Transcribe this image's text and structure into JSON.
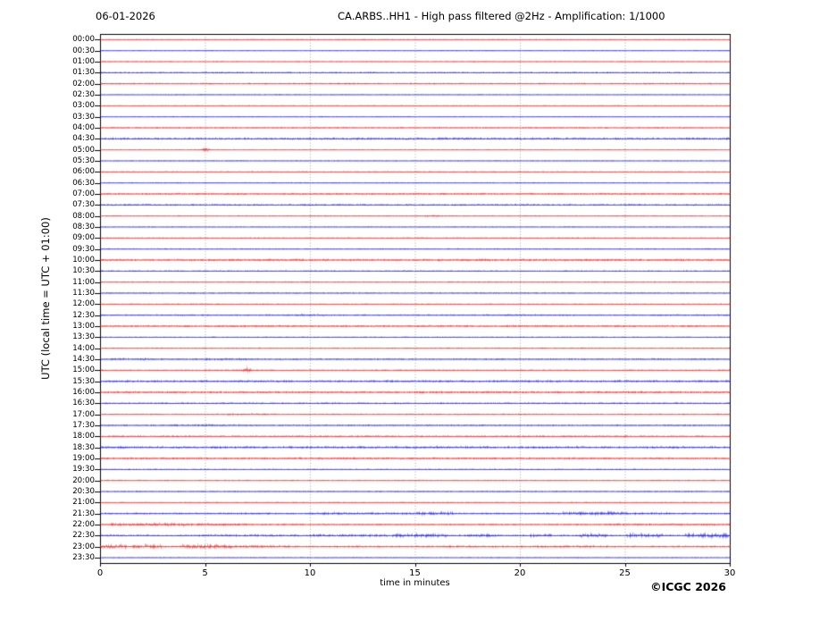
{
  "header": {
    "date": "06-01-2026",
    "title": "CA.ARBS..HH1 - High pass filtered @2Hz - Amplification: 1/1000"
  },
  "axes": {
    "y_label": "UTC (local time = UTC + 01:00)",
    "x_label": "time in minutes",
    "x_ticks": [
      0,
      5,
      10,
      15,
      20,
      25,
      30
    ],
    "x_gridlines": [
      5,
      10,
      15,
      20,
      25
    ]
  },
  "footer": {
    "copyright": "©ICGC 2026"
  },
  "chart_data": {
    "type": "line",
    "subtype": "helicorder-seismogram",
    "title": "CA.ARBS..HH1 - High pass filtered @2Hz - Amplification: 1/1000",
    "date": "06-01-2026",
    "xlabel": "time in minutes",
    "ylabel": "UTC (local time = UTC + 01:00)",
    "x_range": [
      0,
      30
    ],
    "minutes_per_row": 30,
    "grid": "vertical-dotted",
    "colors": {
      "even_row": "#ff0000",
      "odd_row": "#0000ff",
      "grid": "#999999",
      "frame": "#000000"
    },
    "rows": [
      {
        "time": "00:00",
        "color": "red",
        "base": 0.6,
        "segments": [],
        "events": []
      },
      {
        "time": "00:30",
        "color": "blue",
        "base": 0.6,
        "segments": [],
        "events": []
      },
      {
        "time": "01:00",
        "color": "red",
        "base": 0.6,
        "segments": [],
        "events": []
      },
      {
        "time": "01:30",
        "color": "blue",
        "base": 1.0,
        "segments": [],
        "events": []
      },
      {
        "time": "02:00",
        "color": "red",
        "base": 1.0,
        "segments": [],
        "events": []
      },
      {
        "time": "02:30",
        "color": "blue",
        "base": 0.6,
        "segments": [],
        "events": []
      },
      {
        "time": "03:00",
        "color": "red",
        "base": 0.6,
        "segments": [],
        "events": []
      },
      {
        "time": "03:30",
        "color": "blue",
        "base": 0.6,
        "segments": [],
        "events": []
      },
      {
        "time": "04:00",
        "color": "red",
        "base": 0.9,
        "segments": [],
        "events": []
      },
      {
        "time": "04:30",
        "color": "blue",
        "base": 1.5,
        "segments": [],
        "events": []
      },
      {
        "time": "05:00",
        "color": "red",
        "base": 0.6,
        "segments": [
          {
            "from": 4.6,
            "to": 5.4,
            "amp": 1.0
          }
        ],
        "events": [
          {
            "at": 5.0,
            "amp": 3.5,
            "width": 0.35
          }
        ]
      },
      {
        "time": "05:30",
        "color": "blue",
        "base": 0.6,
        "segments": [],
        "events": []
      },
      {
        "time": "06:00",
        "color": "red",
        "base": 0.7,
        "segments": [],
        "events": []
      },
      {
        "time": "06:30",
        "color": "blue",
        "base": 0.7,
        "segments": [],
        "events": []
      },
      {
        "time": "07:00",
        "color": "red",
        "base": 1.2,
        "segments": [],
        "events": []
      },
      {
        "time": "07:30",
        "color": "blue",
        "base": 1.2,
        "segments": [],
        "events": []
      },
      {
        "time": "08:00",
        "color": "red",
        "base": 0.7,
        "segments": [
          {
            "from": 15.3,
            "to": 16.2,
            "amp": 1.1
          }
        ],
        "events": []
      },
      {
        "time": "08:30",
        "color": "blue",
        "base": 0.6,
        "segments": [],
        "events": []
      },
      {
        "time": "09:00",
        "color": "red",
        "base": 0.7,
        "segments": [],
        "events": []
      },
      {
        "time": "09:30",
        "color": "blue",
        "base": 0.8,
        "segments": [],
        "events": []
      },
      {
        "time": "10:00",
        "color": "red",
        "base": 1.5,
        "segments": [],
        "events": []
      },
      {
        "time": "10:30",
        "color": "blue",
        "base": 0.9,
        "segments": [],
        "events": []
      },
      {
        "time": "11:00",
        "color": "red",
        "base": 0.8,
        "segments": [],
        "events": []
      },
      {
        "time": "11:30",
        "color": "blue",
        "base": 0.8,
        "segments": [],
        "events": []
      },
      {
        "time": "12:00",
        "color": "red",
        "base": 0.7,
        "segments": [],
        "events": []
      },
      {
        "time": "12:30",
        "color": "blue",
        "base": 1.0,
        "segments": [
          {
            "from": 9.2,
            "to": 10.9,
            "amp": 1.4
          },
          {
            "from": 19.0,
            "to": 21.0,
            "amp": 1.2
          }
        ],
        "events": []
      },
      {
        "time": "13:00",
        "color": "red",
        "base": 1.3,
        "segments": [],
        "events": []
      },
      {
        "time": "13:30",
        "color": "blue",
        "base": 0.7,
        "segments": [],
        "events": []
      },
      {
        "time": "14:00",
        "color": "red",
        "base": 0.8,
        "segments": [],
        "events": []
      },
      {
        "time": "14:30",
        "color": "blue",
        "base": 1.0,
        "segments": [
          {
            "from": 0.5,
            "to": 2.2,
            "amp": 1.6
          },
          {
            "from": 5.0,
            "to": 7.0,
            "amp": 1.5
          }
        ],
        "events": []
      },
      {
        "time": "15:00",
        "color": "red",
        "base": 0.8,
        "segments": [
          {
            "from": 6.5,
            "to": 7.5,
            "amp": 1.2
          }
        ],
        "events": [
          {
            "at": 7.0,
            "amp": 4.5,
            "width": 0.35
          }
        ]
      },
      {
        "time": "15:30",
        "color": "blue",
        "base": 1.5,
        "segments": [],
        "events": []
      },
      {
        "time": "16:00",
        "color": "red",
        "base": 1.4,
        "segments": [
          {
            "from": 14.8,
            "to": 17.0,
            "amp": 1.7
          }
        ],
        "events": []
      },
      {
        "time": "16:30",
        "color": "blue",
        "base": 1.1,
        "segments": [],
        "events": []
      },
      {
        "time": "17:00",
        "color": "red",
        "base": 0.9,
        "segments": [
          {
            "from": 6.0,
            "to": 8.0,
            "amp": 1.3
          }
        ],
        "events": []
      },
      {
        "time": "17:30",
        "color": "blue",
        "base": 1.0,
        "segments": [
          {
            "from": 3.0,
            "to": 7.0,
            "amp": 1.3
          }
        ],
        "events": []
      },
      {
        "time": "18:00",
        "color": "red",
        "base": 1.1,
        "segments": [],
        "events": []
      },
      {
        "time": "18:30",
        "color": "blue",
        "base": 1.6,
        "segments": [],
        "events": []
      },
      {
        "time": "19:00",
        "color": "red",
        "base": 1.4,
        "segments": [],
        "events": []
      },
      {
        "time": "19:30",
        "color": "blue",
        "base": 0.8,
        "segments": [],
        "events": []
      },
      {
        "time": "20:00",
        "color": "red",
        "base": 0.8,
        "segments": [],
        "events": []
      },
      {
        "time": "20:30",
        "color": "blue",
        "base": 0.8,
        "segments": [],
        "events": []
      },
      {
        "time": "21:00",
        "color": "red",
        "base": 0.7,
        "segments": [],
        "events": []
      },
      {
        "time": "21:30",
        "color": "blue",
        "base": 1.2,
        "segments": [
          {
            "from": 10,
            "to": 15,
            "amp": 1.7
          },
          {
            "from": 15,
            "to": 16.8,
            "amp": 2.5
          },
          {
            "from": 21.8,
            "to": 24.6,
            "amp": 2.7
          },
          {
            "from": 24.6,
            "to": 27,
            "amp": 1.9
          }
        ],
        "events": []
      },
      {
        "time": "22:00",
        "color": "red",
        "base": 1.1,
        "segments": [
          {
            "from": 0.5,
            "to": 4.0,
            "amp": 2.3
          },
          {
            "from": 4.0,
            "to": 7.0,
            "amp": 1.8
          },
          {
            "from": 24,
            "to": 30,
            "amp": 1.4
          }
        ],
        "events": []
      },
      {
        "time": "22:30",
        "color": "blue",
        "base": 1.2,
        "segments": [
          {
            "from": 5,
            "to": 10,
            "amp": 1.5
          },
          {
            "from": 10,
            "to": 14,
            "amp": 1.9
          },
          {
            "from": 14,
            "to": 16.5,
            "amp": 2.7
          },
          {
            "from": 17.5,
            "to": 19,
            "amp": 2.4
          },
          {
            "from": 20.5,
            "to": 21.5,
            "amp": 2.7
          },
          {
            "from": 22.8,
            "to": 24.2,
            "amp": 3.1
          },
          {
            "from": 25,
            "to": 26.8,
            "amp": 3.1
          },
          {
            "from": 27.8,
            "to": 30,
            "amp": 3.5
          }
        ],
        "events": []
      },
      {
        "time": "23:00",
        "color": "red",
        "base": 1.2,
        "segments": [
          {
            "from": 0,
            "to": 1.2,
            "amp": 3.5
          },
          {
            "from": 1.5,
            "to": 3.0,
            "amp": 2.9
          },
          {
            "from": 3.8,
            "to": 6.3,
            "amp": 3.3
          },
          {
            "from": 6.3,
            "to": 9.0,
            "amp": 1.9
          },
          {
            "from": 15.5,
            "to": 18.5,
            "amp": 1.5
          },
          {
            "from": 20.8,
            "to": 23.5,
            "amp": 1.6
          }
        ],
        "events": []
      },
      {
        "time": "23:30",
        "color": "blue",
        "base": 0.6,
        "segments": [],
        "events": []
      }
    ]
  }
}
